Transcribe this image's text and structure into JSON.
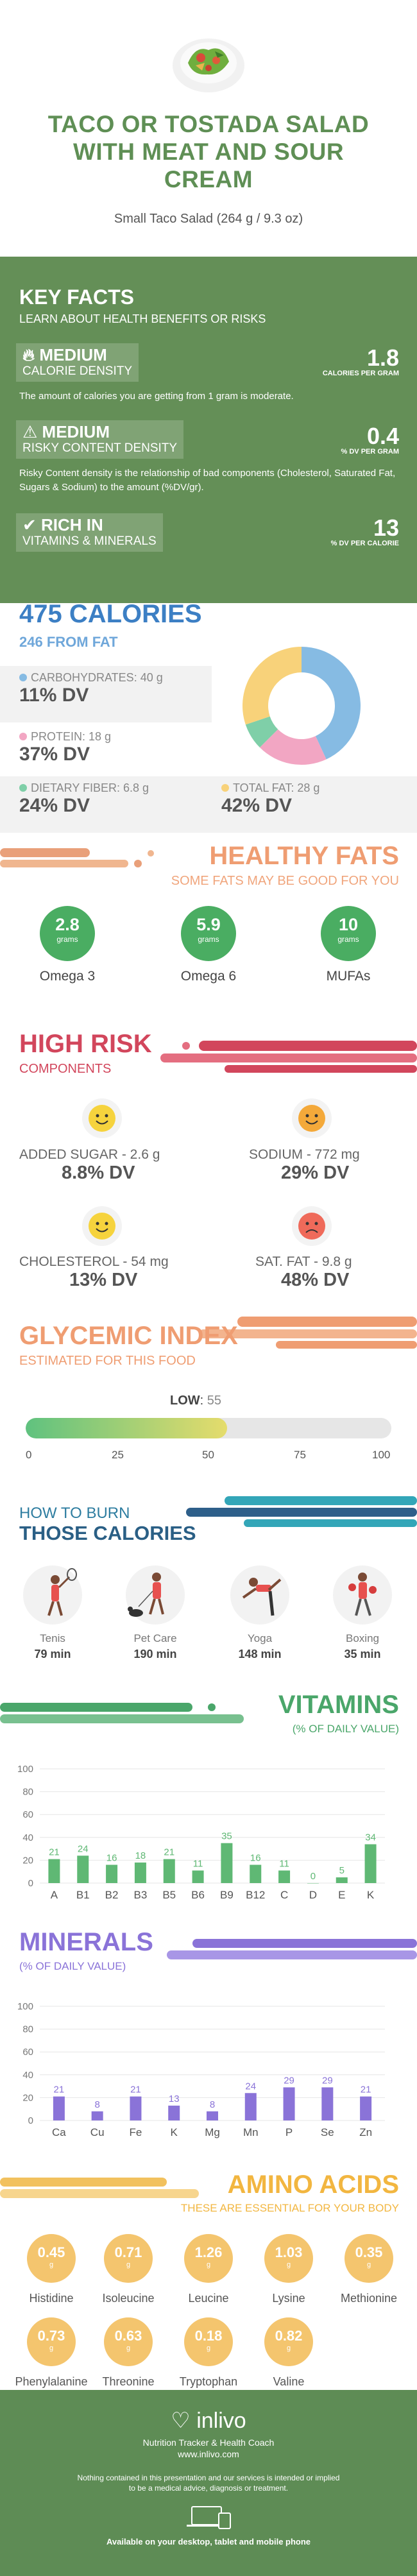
{
  "header": {
    "title_lines": [
      "TACO OR TOSTADA SALAD",
      "WITH MEAT AND SOUR",
      "CREAM"
    ],
    "subtitle": "Small Taco Salad (264 g / 9.3 oz)"
  },
  "key_facts": {
    "title": "KEY FACTS",
    "subtitle": "LEARN ABOUT HEALTH BENEFITS OR RISKS",
    "calorie": {
      "level": "MEDIUM",
      "label": "CALORIE DENSITY",
      "value": "1.8",
      "unit": "CALORIES PER GRAM",
      "desc": "The amount of calories you are getting from 1 gram is moderate."
    },
    "risky": {
      "level": "MEDIUM",
      "label": "RISKY CONTENT DENSITY",
      "value": "0.4",
      "unit": "% DV PER GRAM",
      "desc": "Risky Content density is the relationship of bad components (Cholesterol, Saturated Fat, Sugars & Sodium) to the amount (%DV/gr)."
    },
    "rich": {
      "level": "RICH IN",
      "label": "VITAMINS & MINERALS",
      "value": "13",
      "unit": "% DV PER CALORIE"
    }
  },
  "calories": {
    "title": "475 CALORIES",
    "from_fat": "246 FROM FAT",
    "carbs": {
      "label": "CARBOHYDRATES: 40 g",
      "dv": "11% DV",
      "color": "#86bbe3"
    },
    "protein": {
      "label": "PROTEIN: 18 g",
      "dv": "37% DV",
      "color": "#f2a6c3"
    },
    "fiber": {
      "label": "DIETARY FIBER: 6.8 g",
      "dv": "24% DV",
      "color": "#7fcfa8"
    },
    "fat": {
      "label": "TOTAL FAT: 28 g",
      "dv": "42% DV",
      "color": "#f8d27a"
    }
  },
  "donut": [
    {
      "name": "carbs",
      "value": 40,
      "color": "#86bbe3"
    },
    {
      "name": "protein",
      "value": 18,
      "color": "#f2a6c3"
    },
    {
      "name": "fiber",
      "value": 6.8,
      "color": "#7fcfa8"
    },
    {
      "name": "fat",
      "value": 28,
      "color": "#f8d27a"
    }
  ],
  "healthy_fats": {
    "title": "HEALTHY FATS",
    "subtitle": "SOME FATS MAY BE GOOD FOR YOU",
    "items": [
      {
        "value": "2.8",
        "unit": "grams",
        "label": "Omega 3"
      },
      {
        "value": "5.9",
        "unit": "grams",
        "label": "Omega 6"
      },
      {
        "value": "10",
        "unit": "grams",
        "label": "MUFAs"
      }
    ]
  },
  "high_risk": {
    "title": "HIGH RISK",
    "subtitle": "COMPONENTS",
    "items": [
      {
        "label": "ADDED SUGAR - 2.6 g",
        "dv": "8.8% DV",
        "face": "happy",
        "color": "#f6d33d"
      },
      {
        "label": "SODIUM - 772 mg",
        "dv": "29% DV",
        "face": "happy",
        "color": "#f4a93a"
      },
      {
        "label": "CHOLESTEROL - 54 mg",
        "dv": "13% DV",
        "face": "happy",
        "color": "#f6d33d"
      },
      {
        "label": "SAT. FAT - 9.8 g",
        "dv": "48% DV",
        "face": "sad",
        "color": "#ef6a5a"
      }
    ]
  },
  "glycemic": {
    "title": "GLYCEMIC INDEX",
    "subtitle": "ESTIMATED FOR THIS FOOD",
    "level": "LOW",
    "value": 55,
    "ticks": [
      "0",
      "25",
      "50",
      "75",
      "100"
    ]
  },
  "burn": {
    "title1": "HOW TO BURN",
    "title2": "THOSE CALORIES",
    "items": [
      {
        "name": "Tenis",
        "minutes": "79 min"
      },
      {
        "name": "Pet Care",
        "minutes": "190 min"
      },
      {
        "name": "Yoga",
        "minutes": "148 min"
      },
      {
        "name": "Boxing",
        "minutes": "35 min"
      }
    ]
  },
  "vitamins": {
    "title": "VITAMINS",
    "subtitle": "(% OF DAILY VALUE)",
    "color": "#5fb874"
  },
  "minerals": {
    "title": "MINERALS",
    "subtitle": "(% OF DAILY VALUE)",
    "color": "#8a73d8"
  },
  "chart_data": [
    {
      "type": "bar",
      "title": "VITAMINS",
      "subtitle": "(% OF DAILY VALUE)",
      "categories": [
        "A",
        "B1",
        "B2",
        "B3",
        "B5",
        "B6",
        "B9",
        "B12",
        "C",
        "D",
        "E",
        "K"
      ],
      "values": [
        21,
        24,
        16,
        18,
        21,
        11,
        35,
        16,
        11,
        0,
        5,
        34
      ],
      "yticks": [
        "0",
        "20",
        "40",
        "60",
        "80",
        "100"
      ],
      "ylim": [
        0,
        100
      ],
      "grid": true
    },
    {
      "type": "bar",
      "title": "MINERALS",
      "subtitle": "(% OF DAILY VALUE)",
      "categories": [
        "Ca",
        "Cu",
        "Fe",
        "K",
        "Mg",
        "Mn",
        "P",
        "Se",
        "Zn"
      ],
      "values": [
        21,
        8,
        21,
        13,
        8,
        24,
        29,
        29,
        21
      ],
      "yticks": [
        "0",
        "20",
        "40",
        "60",
        "80",
        "100"
      ],
      "ylim": [
        0,
        100
      ],
      "grid": true
    }
  ],
  "amino": {
    "title": "AMINO ACIDS",
    "subtitle": "THESE ARE ESSENTIAL FOR YOUR BODY",
    "unit": "g",
    "items": [
      {
        "value": "0.45",
        "name": "Histidine"
      },
      {
        "value": "0.71",
        "name": "Isoleucine"
      },
      {
        "value": "1.26",
        "name": "Leucine"
      },
      {
        "value": "1.03",
        "name": "Lysine"
      },
      {
        "value": "0.35",
        "name": "Methionine"
      },
      {
        "value": "0.73",
        "name": "Phenylalanine"
      },
      {
        "value": "0.63",
        "name": "Threonine"
      },
      {
        "value": "0.18",
        "name": "Tryptophan"
      },
      {
        "value": "0.82",
        "name": "Valine"
      }
    ]
  },
  "footer": {
    "brand": "inlivo",
    "tagline": "Nutrition Tracker & Health Coach",
    "url": "www.inlivo.com",
    "disclaimer1": "Nothing contained in this presentation and our services is intended or implied",
    "disclaimer2": "to be a medical advice, diagnosis or treatment.",
    "available": "Available on your desktop, tablet and mobile phone"
  }
}
